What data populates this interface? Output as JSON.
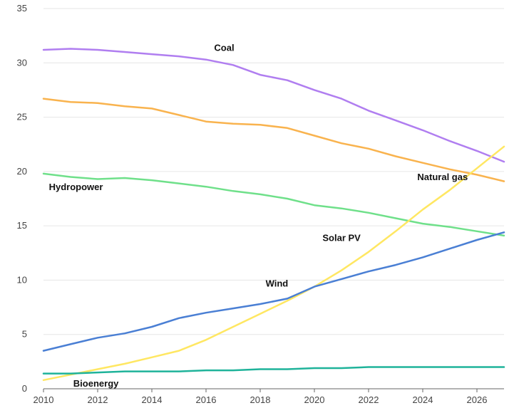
{
  "chart_data": {
    "type": "line",
    "title": "",
    "xlabel": "",
    "ylabel": "",
    "xlim": [
      2010,
      2027
    ],
    "ylim": [
      0,
      35
    ],
    "x_ticks": [
      2010,
      2012,
      2014,
      2016,
      2018,
      2020,
      2022,
      2024,
      2026
    ],
    "y_ticks": [
      0,
      5,
      10,
      15,
      20,
      25,
      30,
      35
    ],
    "grid": "horizontal",
    "legend": "none (series labelled directly on chart)",
    "colors": {
      "grid": "#e6e6e6",
      "axis": "#666666"
    },
    "x": [
      2010,
      2011,
      2012,
      2013,
      2014,
      2015,
      2016,
      2017,
      2018,
      2019,
      2020,
      2021,
      2022,
      2023,
      2024,
      2025,
      2026,
      2027
    ],
    "series": [
      {
        "name": "Coal",
        "color": "#b07ef0",
        "values": [
          31.2,
          31.3,
          31.2,
          31.0,
          30.8,
          30.6,
          30.3,
          29.8,
          28.9,
          28.4,
          27.5,
          26.7,
          25.6,
          24.7,
          23.8,
          22.8,
          21.9,
          20.9
        ]
      },
      {
        "name": "Natural gas",
        "color": "#f9b34e",
        "values": [
          26.7,
          26.4,
          26.3,
          26.0,
          25.8,
          25.2,
          24.6,
          24.4,
          24.3,
          24.0,
          23.3,
          22.6,
          22.1,
          21.4,
          20.8,
          20.2,
          19.7,
          19.1
        ]
      },
      {
        "name": "Hydropower",
        "color": "#6fe08a",
        "values": [
          19.8,
          19.5,
          19.3,
          19.4,
          19.2,
          18.9,
          18.6,
          18.2,
          17.9,
          17.5,
          16.9,
          16.6,
          16.2,
          15.7,
          15.2,
          14.9,
          14.5,
          14.1
        ]
      },
      {
        "name": "Solar PV",
        "color": "#ffe762",
        "values": [
          0.8,
          1.3,
          1.8,
          2.3,
          2.9,
          3.5,
          4.5,
          5.7,
          6.9,
          8.1,
          9.4,
          10.9,
          12.6,
          14.5,
          16.5,
          18.3,
          20.3,
          22.3
        ]
      },
      {
        "name": "Wind",
        "color": "#4a7fd4",
        "values": [
          3.5,
          4.1,
          4.7,
          5.1,
          5.7,
          6.5,
          7.0,
          7.4,
          7.8,
          8.3,
          9.4,
          10.1,
          10.8,
          11.4,
          12.1,
          12.9,
          13.7,
          14.4
        ]
      },
      {
        "name": "Bioenergy",
        "color": "#1fb39a",
        "values": [
          1.4,
          1.4,
          1.5,
          1.6,
          1.6,
          1.6,
          1.7,
          1.7,
          1.8,
          1.8,
          1.9,
          1.9,
          2.0,
          2.0,
          2.0,
          2.0,
          2.0,
          2.0
        ]
      }
    ],
    "annotations": [
      {
        "series": "Coal",
        "text": "Coal",
        "anchor_x": 2016.3,
        "anchor_y": 31.1
      },
      {
        "series": "Natural gas",
        "text": "Natural gas",
        "anchor_x": 2023.8,
        "anchor_y": 19.2
      },
      {
        "series": "Hydropower",
        "text": "Hydropower",
        "anchor_x": 2010.2,
        "anchor_y": 18.3
      },
      {
        "series": "Solar PV",
        "text": "Solar PV",
        "anchor_x": 2020.3,
        "anchor_y": 13.6
      },
      {
        "series": "Wind",
        "text": "Wind",
        "anchor_x": 2018.2,
        "anchor_y": 9.4
      },
      {
        "series": "Bioenergy",
        "text": "Bioenergy",
        "anchor_x": 2011.1,
        "anchor_y": 0.2
      }
    ]
  }
}
